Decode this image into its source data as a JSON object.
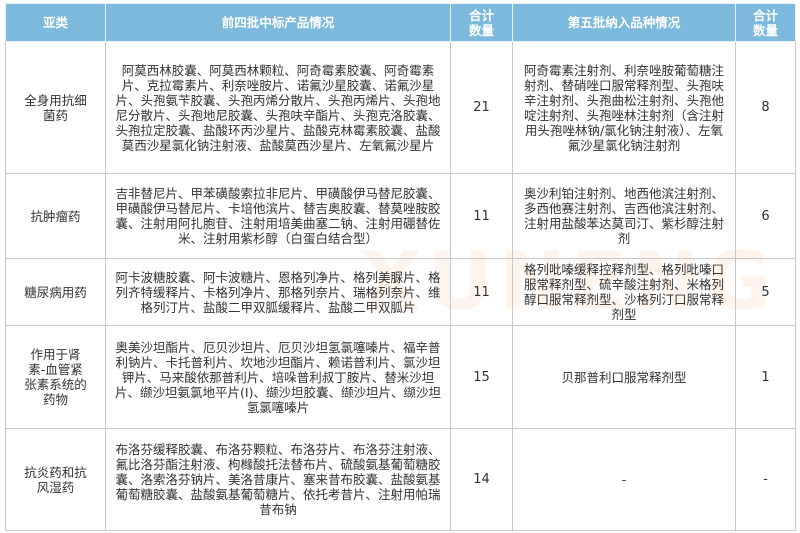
{
  "headers": [
    "亚类",
    "前四批中标产品情况",
    "合计数量",
    "第五批纳入品种情况",
    "合计数量"
  ],
  "rows": [
    {
      "category": "全身用抗细菌药",
      "previous": "阿莫西林胶囊、阿莫西林颗粒、阿奇霉素胶囊、阿奇霉素片、克拉霉素片、利奈唑胺片、诺氟沙星胶囊、诺氟沙星片、头孢氨苄胶囊、头孢丙烯分散片、头孢丙烯片、头孢地尼分散片、头孢地尼胶囊、头孢呋辛酯片、头孢克洛胶囊、头孢拉定胶囊、盐酸环丙沙星片、盐酸克林霉素胶囊、盐酸莫西沙星氯化钠注射液、盐酸莫西沙星片、左氧氟沙星片",
      "previous_count": "21",
      "fifth": "阿奇霉素注射剂、利奈唑胺葡萄糖注射剂、替硝唑口服常释剂型、头孢呋辛注射剂、头孢曲松注射剂、头孢他啶注射剂、头孢唑林注射剂（含注射用头孢唑林钠/氯化钠注射液）、左氧氟沙星氯化钠注射剂",
      "fifth_count": "8"
    },
    {
      "category": "抗肿瘤药",
      "previous": "吉非替尼片、甲苯磺酸索拉非尼片、甲磺酸伊马替尼胶囊、甲磺酸伊马替尼片、卡培他滨片、替吉奥胶囊、替莫唑胺胶囊、注射用阿扎胞苷、注射用培美曲塞二钠、注射用硼替佐米、注射用紫杉醇（白蛋白结合型）",
      "previous_count": "11",
      "fifth": "奥沙利铂注射剂、地西他滨注射剂、多西他赛注射剂、吉西他滨注射剂、注射用盐酸苯达莫司汀、紫杉醇注射剂",
      "fifth_count": "6"
    },
    {
      "category": "糖尿病用药",
      "previous": "阿卡波糖胶囊、阿卡波糖片、恩格列净片、格列美脲片、格列齐特缓释片、卡格列净片、那格列奈片、瑞格列奈片、维格列汀片、盐酸二甲双胍缓释片、盐酸二甲双胍片",
      "previous_count": "11",
      "fifth": "格列吡嗪缓释控释剂型、格列吡嗪口服常释剂型、硫辛酸注射剂、米格列醇口服常释剂型、沙格列汀口服常释剂型",
      "fifth_count": "5"
    },
    {
      "category": "作用于肾素-血管紧张素系统的药物",
      "previous": "奥美沙坦酯片、厄贝沙坦片、厄贝沙坦氢氯噻嗪片、福辛普利钠片、卡托普利片、坎地沙坦酯片、赖诺普利片、氯沙坦钾片、马来酸依那普利片、培哚普利叔丁胺片、替米沙坦片、缬沙坦氨氯地平片(Ⅰ)、缬沙坦胶囊、缬沙坦片、缬沙坦氢氯噻嗪片",
      "previous_count": "15",
      "fifth": "贝那普利口服常释剂型",
      "fifth_count": "1"
    },
    {
      "category": "抗炎药和抗风湿药",
      "previous": "布洛芬缓释胶囊、布洛芬颗粒、布洛芬片、布洛芬注射液、氟比洛芬酯注射液、枸橼酸托法替布片、硫酸氨基葡萄糖胶囊、洛索洛芬钠片、美洛昔康片、塞来昔布胶囊、盐酸氨基葡萄糖胶囊、盐酸氨基葡萄糖片、依托考昔片、注射用帕瑞昔布钠",
      "previous_count": "14",
      "fifth": "-",
      "fifth_count": "-"
    }
  ],
  "colors": {
    "header_bg": "#7db9dd",
    "header_text": "#ffffff",
    "border": "#c8c8c8"
  }
}
